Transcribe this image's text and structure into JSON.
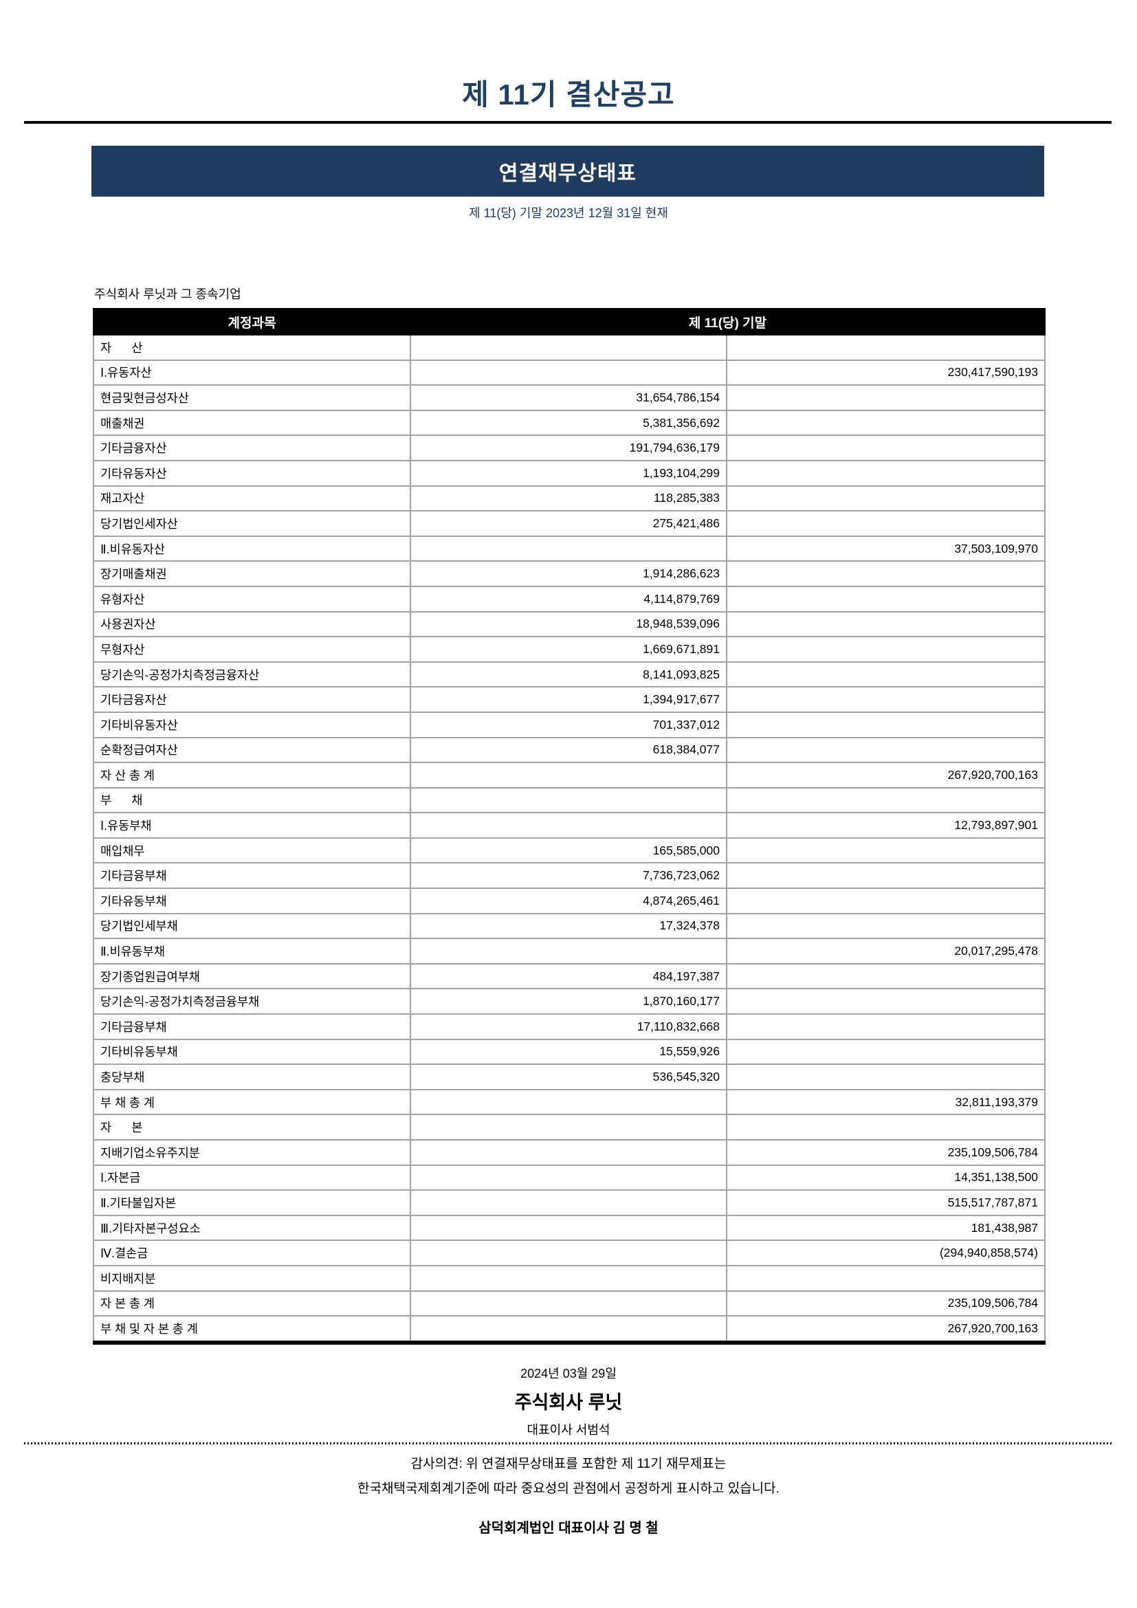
{
  "page": {
    "title": "제 11기 결산공고",
    "statement_title": "연결재무상태표",
    "statement_subtitle": "제 11(당) 기말 2023년 12월 31일 현재",
    "company_line": "주식회사 루닛과 그 종속기업"
  },
  "colors": {
    "navy": "#1f3c5f",
    "grid_gray": "#a3a3a3",
    "header_black": "#000000"
  },
  "table": {
    "header": {
      "account_col": "계정과목",
      "period_col": "제 11(당) 기말"
    },
    "rows": [
      {
        "label": "자      산",
        "indent": 0,
        "mid": "",
        "right": ""
      },
      {
        "label": "Ⅰ.유동자산",
        "indent": 0,
        "mid": "",
        "right": "230,417,590,193"
      },
      {
        "label": "현금및현금성자산",
        "indent": 1,
        "mid": "31,654,786,154",
        "right": ""
      },
      {
        "label": "매출채권",
        "indent": 1,
        "mid": "5,381,356,692",
        "right": ""
      },
      {
        "label": "기타금융자산",
        "indent": 1,
        "mid": "191,794,636,179",
        "right": ""
      },
      {
        "label": "기타유동자산",
        "indent": 1,
        "mid": "1,193,104,299",
        "right": ""
      },
      {
        "label": "재고자산",
        "indent": 1,
        "mid": "118,285,383",
        "right": ""
      },
      {
        "label": "당기법인세자산",
        "indent": 1,
        "mid": "275,421,486",
        "right": ""
      },
      {
        "label": "Ⅱ.비유동자산",
        "indent": 0,
        "mid": "",
        "right": "37,503,109,970"
      },
      {
        "label": "장기매출채권",
        "indent": 1,
        "mid": "1,914,286,623",
        "right": ""
      },
      {
        "label": "유형자산",
        "indent": 1,
        "mid": "4,114,879,769",
        "right": ""
      },
      {
        "label": "사용권자산",
        "indent": 1,
        "mid": "18,948,539,096",
        "right": ""
      },
      {
        "label": "무형자산",
        "indent": 1,
        "mid": "1,669,671,891",
        "right": ""
      },
      {
        "label": "당기손익-공정가치측정금융자산",
        "indent": 1,
        "mid": "8,141,093,825",
        "right": ""
      },
      {
        "label": "기타금융자산",
        "indent": 1,
        "mid": "1,394,917,677",
        "right": ""
      },
      {
        "label": "기타비유동자산",
        "indent": 1,
        "mid": "701,337,012",
        "right": ""
      },
      {
        "label": "순확정급여자산",
        "indent": 1,
        "mid": "618,384,077",
        "right": ""
      },
      {
        "label": "자 산 총 계",
        "indent": 0,
        "mid": "",
        "right": "267,920,700,163"
      },
      {
        "label": "부      채",
        "indent": 0,
        "mid": "",
        "right": ""
      },
      {
        "label": "Ⅰ.유동부채",
        "indent": 0,
        "mid": "",
        "right": "12,793,897,901"
      },
      {
        "label": "매입채무",
        "indent": 1,
        "mid": "165,585,000",
        "right": ""
      },
      {
        "label": "기타금융부채",
        "indent": 1,
        "mid": "7,736,723,062",
        "right": ""
      },
      {
        "label": "기타유동부채",
        "indent": 1,
        "mid": "4,874,265,461",
        "right": ""
      },
      {
        "label": "당기법인세부채",
        "indent": 1,
        "mid": "17,324,378",
        "right": ""
      },
      {
        "label": "Ⅱ.비유동부채",
        "indent": 0,
        "mid": "",
        "right": "20,017,295,478"
      },
      {
        "label": "장기종업원급여부채",
        "indent": 1,
        "mid": "484,197,387",
        "right": ""
      },
      {
        "label": "당기손익-공정가치측정금융부채",
        "indent": 1,
        "mid": "1,870,160,177",
        "right": ""
      },
      {
        "label": "기타금융부채",
        "indent": 1,
        "mid": "17,110,832,668",
        "right": ""
      },
      {
        "label": "기타비유동부채",
        "indent": 1,
        "mid": "15,559,926",
        "right": ""
      },
      {
        "label": "충당부채",
        "indent": 1,
        "mid": "536,545,320",
        "right": ""
      },
      {
        "label": "부 채 총 계",
        "indent": 0,
        "mid": "",
        "right": "32,811,193,379"
      },
      {
        "label": "자      본",
        "indent": 0,
        "mid": "",
        "right": ""
      },
      {
        "label": "지배기업소유주지분",
        "indent": 2,
        "mid": "",
        "right": "235,109,506,784"
      },
      {
        "label": "Ⅰ.자본금",
        "indent": 3,
        "mid": "",
        "right": "14,351,138,500"
      },
      {
        "label": "Ⅱ.기타불입자본",
        "indent": 3,
        "mid": "",
        "right": "515,517,787,871"
      },
      {
        "label": "Ⅲ.기타자본구성요소",
        "indent": 3,
        "mid": "",
        "right": "181,438,987"
      },
      {
        "label": "Ⅳ.결손금",
        "indent": 3,
        "mid": "",
        "right": "(294,940,858,574)"
      },
      {
        "label": "비지배지분",
        "indent": 2,
        "mid": "",
        "right": ""
      },
      {
        "label": "자 본 총 계",
        "indent": 0,
        "mid": "",
        "right": "235,109,506,784"
      },
      {
        "label": "부 채 및 자 본 총 계",
        "indent": 0,
        "mid": "",
        "right": "267,920,700,163"
      }
    ]
  },
  "footer": {
    "date": "2024년 03월 29일",
    "company": "주식회사 루닛",
    "ceo": "대표이사 서범석",
    "audit_line1": "감사의견: 위 연결재무상태표를 포함한 제 11기 재무제표는",
    "audit_line2": "한국채택국제회계기준에 따라 중요성의 관점에서 공정하게 표시하고 있습니다.",
    "auditor": "삼덕회계법인 대표이사 김 명 철"
  }
}
